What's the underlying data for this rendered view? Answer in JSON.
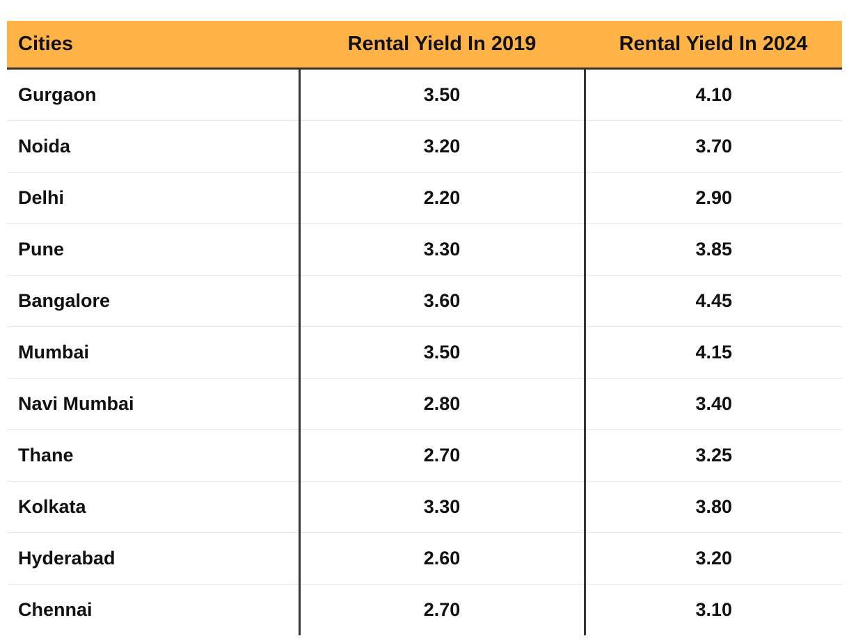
{
  "table": {
    "headers": [
      "Cities",
      "Rental Yield In 2019",
      "Rental Yield In 2024"
    ],
    "rows": [
      {
        "city": "Gurgaon",
        "y2019": "3.50",
        "y2024": "4.10"
      },
      {
        "city": "Noida",
        "y2019": "3.20",
        "y2024": "3.70"
      },
      {
        "city": "Delhi",
        "y2019": "2.20",
        "y2024": "2.90"
      },
      {
        "city": "Pune",
        "y2019": "3.30",
        "y2024": "3.85"
      },
      {
        "city": "Bangalore",
        "y2019": "3.60",
        "y2024": "4.45"
      },
      {
        "city": "Mumbai",
        "y2019": "3.50",
        "y2024": "4.15"
      },
      {
        "city": "Navi Mumbai",
        "y2019": "2.80",
        "y2024": "3.40"
      },
      {
        "city": "Thane",
        "y2019": "2.70",
        "y2024": "3.25"
      },
      {
        "city": "Kolkata",
        "y2019": "3.30",
        "y2024": "3.80"
      },
      {
        "city": "Hyderabad",
        "y2019": "2.60",
        "y2024": "3.20"
      },
      {
        "city": "Chennai",
        "y2019": "2.70",
        "y2024": "3.10"
      }
    ]
  },
  "colors": {
    "header_bg": "#ffb347",
    "divider": "#333333",
    "row_line": "#e6e6e6"
  }
}
